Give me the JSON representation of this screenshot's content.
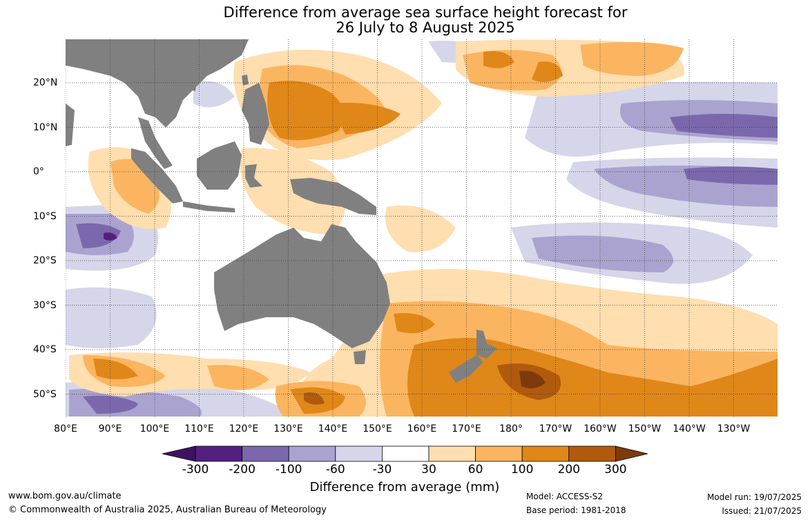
{
  "title": {
    "line1": "Difference from average sea surface height forecast for",
    "line2": "26 July to 8 August 2025"
  },
  "map": {
    "longitude_labels": [
      "80°E",
      "90°E",
      "100°E",
      "110°E",
      "120°E",
      "130°E",
      "140°E",
      "150°E",
      "160°E",
      "170°E",
      "180°",
      "170°W",
      "160°W",
      "150°W",
      "140°W",
      "130°W"
    ],
    "latitude_labels": [
      "20°N",
      "10°N",
      "0°",
      "10°S",
      "20°S",
      "30°S",
      "40°S",
      "50°S"
    ],
    "land_color": "#808080",
    "gridlines": "dotted"
  },
  "colorbar": {
    "title": "Difference from average (mm)",
    "tick_labels": [
      "-300",
      "-200",
      "-100",
      "-60",
      "-30",
      "30",
      "60",
      "100",
      "200",
      "300"
    ],
    "colors": [
      "#3f1163",
      "#532080",
      "#7b68ac",
      "#aaa3cf",
      "#d6d6ea",
      "#ffffff",
      "#ffdeaf",
      "#fbb560",
      "#e08719",
      "#b05a0e",
      "#7d3b0b"
    ]
  },
  "footer": {
    "website": "www.bom.gov.au/climate",
    "copyright": "© Commonwealth of Australia 2025, Australian Bureau of Meteorology",
    "model": "Model: ACCESS-S2",
    "base_period": "Base period: 1981-2018",
    "model_run": "Model run: 19/07/2025",
    "issued": "Issued: 21/07/2025"
  }
}
